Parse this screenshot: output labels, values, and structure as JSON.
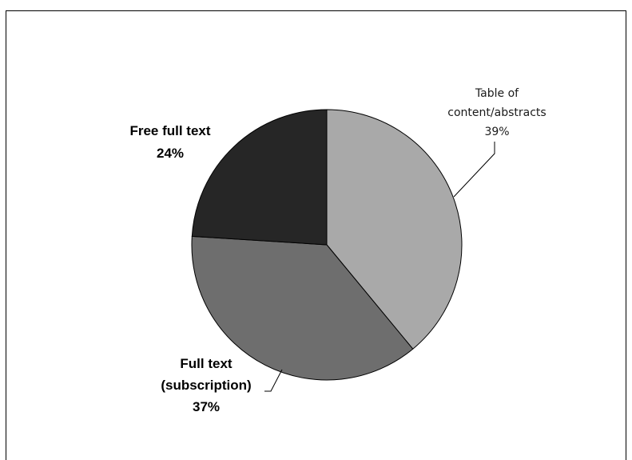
{
  "chart_data": {
    "type": "pie",
    "title": "",
    "slices": [
      {
        "label_lines": [
          "Table of",
          "content/abstracts"
        ],
        "percent_label": "39%",
        "value": 39,
        "color": "#a9a9a9"
      },
      {
        "label_lines": [
          "Full text",
          "(subscription)"
        ],
        "percent_label": "37%",
        "value": 37,
        "color": "#6e6e6e"
      },
      {
        "label_lines": [
          "Free full text"
        ],
        "percent_label": "24%",
        "value": 24,
        "color": "#262626"
      }
    ],
    "start_angle_deg": 0,
    "direction": "clockwise",
    "legend": "none",
    "outline_color": "#000000"
  }
}
